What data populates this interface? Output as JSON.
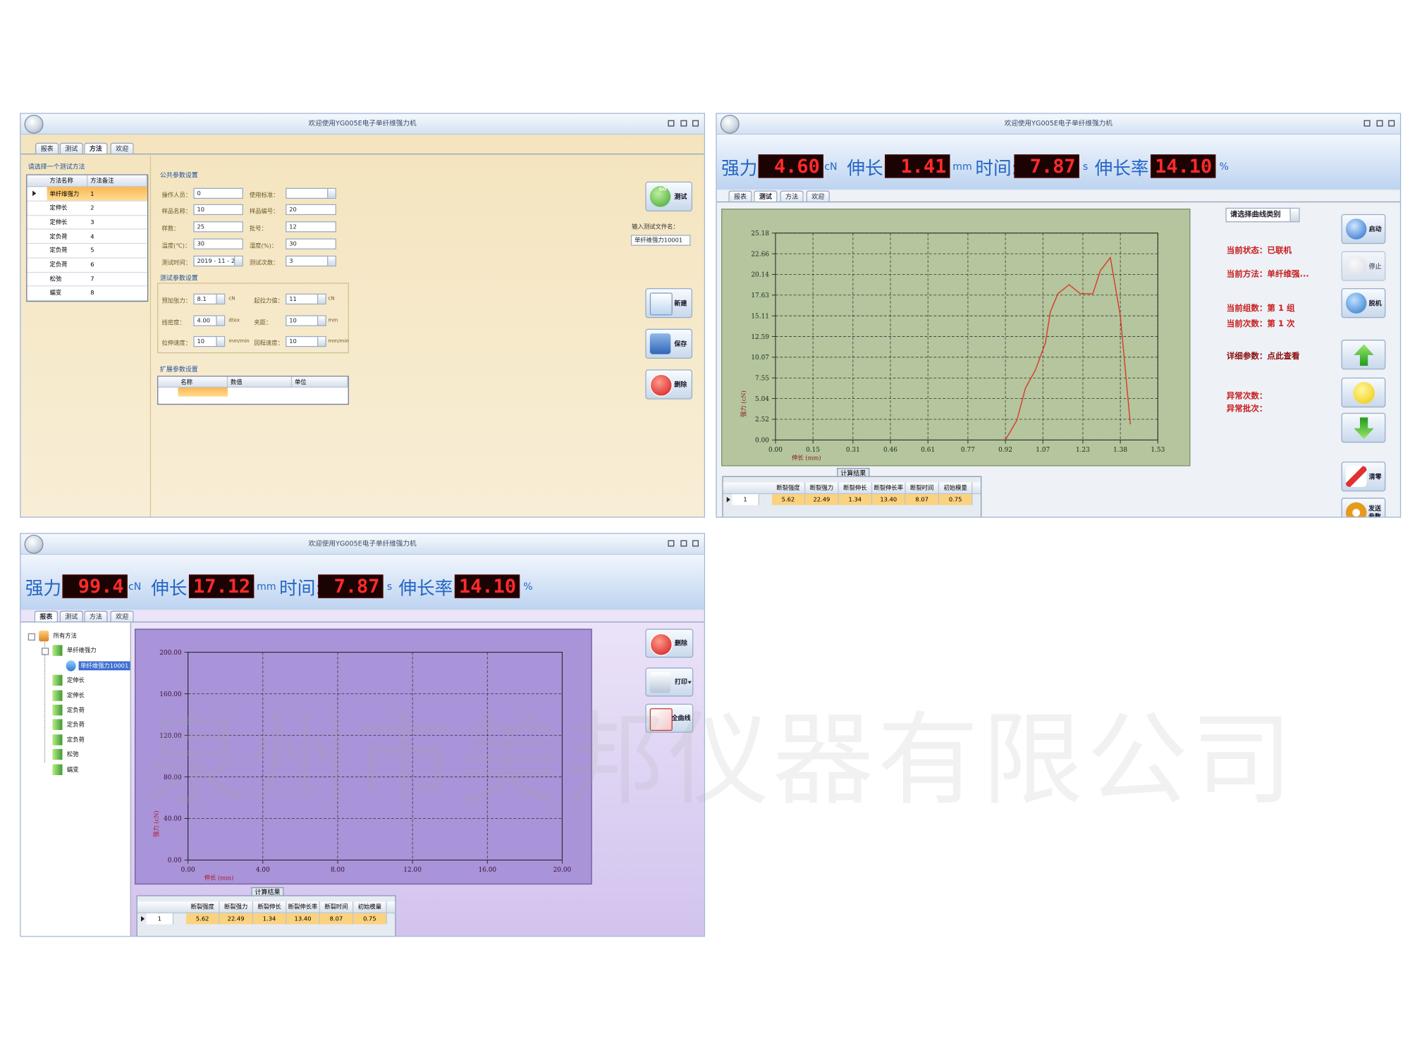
{
  "app": {
    "title": "欢迎使用YG005E电子单纤维强力机",
    "tabs": [
      "报表",
      "测试",
      "方法",
      "欢迎"
    ],
    "readout_labels": [
      {
        "label": "强力:",
        "unit": "cN"
      },
      {
        "label": "伸长:",
        "unit": "mm"
      },
      {
        "label": "时间:",
        "unit": "s"
      },
      {
        "label": "伸长率:",
        "unit": "%"
      }
    ]
  },
  "method_window": {
    "prompt": "请选择一个测试方法",
    "methods": {
      "headers": [
        "方法名称",
        "方法备注"
      ],
      "rows": [
        [
          "单纤维强力",
          "1"
        ],
        [
          "定伸长",
          "2"
        ],
        [
          "定伸长",
          "3"
        ],
        [
          "定负荷",
          "4"
        ],
        [
          "定负荷",
          "5"
        ],
        [
          "定负荷",
          "6"
        ],
        [
          "松弛",
          "7"
        ],
        [
          "蠕变",
          "8"
        ]
      ]
    },
    "common_params": {
      "title": "公共参数设置",
      "fields": [
        {
          "label": "操作人员：",
          "value": "0"
        },
        {
          "label": "使用标准："
        },
        {
          "label": "样品名称：",
          "value": "10"
        },
        {
          "label": "样品编号：",
          "value": "20"
        },
        {
          "label": "样数：",
          "value": "25"
        },
        {
          "label": "批号：",
          "value": "12"
        },
        {
          "label": "温度(℃)：",
          "value": "30"
        },
        {
          "label": "湿度(%)：",
          "value": "30"
        },
        {
          "label": "测试时间：",
          "value": "2019 - 11 - 2"
        },
        {
          "label": "测试次数：",
          "value": "3"
        }
      ]
    },
    "test_params": {
      "title": "测试参数设置",
      "fields": [
        {
          "label": "预加张力：",
          "value": "8.1",
          "unit": "cN"
        },
        {
          "label": "起拉力值：",
          "value": "11",
          "unit": "cN"
        },
        {
          "label": "线密度：",
          "value": "4.00",
          "unit": "dtex"
        },
        {
          "label": "夹距：",
          "value": "10",
          "unit": "mm"
        },
        {
          "label": "拉伸速度：",
          "value": "10",
          "unit": "mm/min"
        },
        {
          "label": "回程速度：",
          "value": "10",
          "unit": "mm/min"
        }
      ]
    },
    "ext_params": {
      "title": "扩展参数设置",
      "headers": [
        "名称",
        "数值",
        "单位"
      ]
    },
    "go_badge": "GO",
    "buttons": [
      "测试",
      "新建",
      "保存",
      "删除"
    ],
    "file_label": "输入测试文件名：",
    "file_name": "单纤维强力10001"
  },
  "test_window": {
    "readouts": [
      "4.60",
      "1.41",
      "7.87",
      "14.10"
    ],
    "curve_select": "请选择曲线类别",
    "status": [
      "当前状态：已联机",
      "当前方法：单纤维强...",
      "当前组数：第 1 组",
      "当前次数：第 1 次",
      "详细参数：点此查看",
      "异常次数：",
      "异常批次："
    ],
    "buttons": [
      "启动",
      "停止",
      "脱机",
      "清零",
      "发送参数"
    ]
  },
  "report_window": {
    "readouts": [
      "99.4",
      "17.12",
      "7.87",
      "14.10"
    ],
    "tree": {
      "label": "所有方法",
      "children": [
        {
          "label": "单纤维强力",
          "children": [
            {
              "label": "单纤维强力10001"
            }
          ]
        },
        {
          "label": "定伸长"
        },
        {
          "label": "定伸长"
        },
        {
          "label": "定负荷"
        },
        {
          "label": "定负荷"
        },
        {
          "label": "定负荷"
        },
        {
          "label": "松弛"
        },
        {
          "label": "蠕变"
        }
      ]
    },
    "buttons": [
      "删除",
      "打印",
      "全曲线"
    ]
  },
  "results": {
    "title": "计算结果",
    "headers": [
      "断裂强度",
      "断裂强力",
      "断裂伸长",
      "断裂伸长率",
      "断裂时间",
      "初始模量"
    ],
    "rows": [
      [
        "1",
        "5.62",
        "22.49",
        "1.34",
        "13.40",
        "8.07",
        "0.75"
      ]
    ]
  },
  "watermark": "泉州市美邦仪器有限公司",
  "chart_data": [
    {
      "type": "line",
      "xlabel": "伸长 (mm)",
      "ylabel": "强力 (cN)",
      "x": [
        0.92,
        0.966,
        1.0,
        1.04,
        1.08,
        1.1,
        1.13,
        1.175,
        1.22,
        1.27,
        1.3,
        1.34,
        1.38,
        1.42
      ],
      "series": [
        {
          "color": "#d83a2a",
          "values": [
            0,
            2.4,
            6.3,
            8.5,
            11.8,
            15.6,
            17.8,
            18.9,
            17.8,
            17.8,
            20.6,
            22.2,
            15.1,
            1.9
          ]
        }
      ],
      "xlim": [
        0,
        1.53
      ],
      "ylim": [
        0,
        25.18
      ],
      "xticks": [
        {
          "value": 0,
          "label": "0.00"
        },
        0.15,
        0.31,
        0.46,
        0.61,
        0.77,
        0.92,
        1.07,
        1.23,
        1.38,
        1.53
      ],
      "yticks": [
        {
          "value": 0,
          "label": "0.00"
        },
        2.52,
        5.04,
        7.55,
        10.07,
        12.59,
        15.11,
        17.63,
        20.14,
        22.66,
        25.18
      ],
      "grid": true
    },
    {
      "type": "line",
      "xlabel": "伸长 (mm)",
      "ylabel": "强力 (cN)",
      "xlim": [
        0,
        20
      ],
      "ylim": [
        0,
        200
      ],
      "xticks": [
        {
          "value": 0,
          "label": "0.00"
        },
        {
          "value": 4,
          "label": "4.00"
        },
        {
          "value": 8,
          "label": "8.00"
        },
        {
          "value": 12,
          "label": "12.00"
        },
        {
          "value": 16,
          "label": "16.00"
        },
        {
          "value": 20,
          "label": "20.00"
        }
      ],
      "yticks": [
        {
          "value": 0,
          "label": "0.00"
        },
        {
          "value": 40,
          "label": "40.00"
        },
        {
          "value": 80,
          "label": "80.00"
        },
        {
          "value": 120,
          "label": "120.00"
        },
        {
          "value": 160,
          "label": "160.00"
        },
        {
          "value": 200,
          "label": "200.00"
        }
      ],
      "grid": true
    }
  ]
}
